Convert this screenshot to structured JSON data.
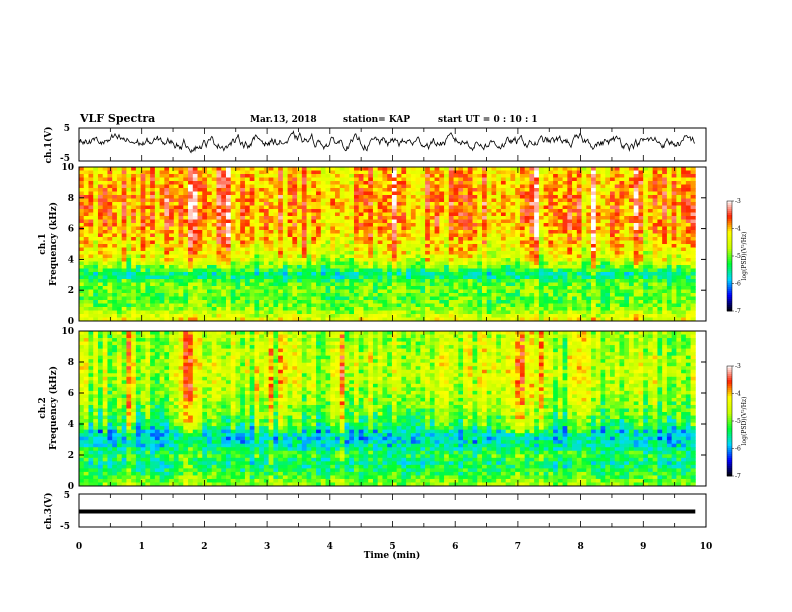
{
  "header": {
    "title": "VLF Spectra",
    "date": "Mar.13, 2018",
    "station": "station= KAP",
    "start": "start  UT =   0 : 10 : 1"
  },
  "colors": {
    "line": "#000000",
    "colormap": [
      "#000000",
      "#0000ff",
      "#00d8ff",
      "#00ff33",
      "#c8ff00",
      "#ffff00",
      "#ff2200",
      "#ffffff"
    ]
  },
  "chart_data": [
    {
      "id": "ch1-waveform",
      "type": "line",
      "ylabel": "ch.1(V)",
      "yticks": [
        "5",
        "-5"
      ],
      "ylim": [
        -5,
        5
      ],
      "xlim": [
        0,
        10
      ],
      "data_extent_min": 9.83,
      "description_values": {
        "mean": 0.5,
        "amplitude": 2.5
      },
      "sample_envelope": {
        "x": [
          0,
          1,
          2,
          3,
          4,
          5,
          6,
          7,
          8,
          9,
          9.83
        ],
        "y": [
          0.8,
          0.6,
          0.4,
          1.2,
          0.7,
          0.5,
          0.9,
          0.4,
          0.8,
          0.6,
          0.5
        ]
      }
    },
    {
      "id": "ch1-spectrogram",
      "type": "heatmap",
      "ylabel": "ch.1",
      "ylabel2": "Frequency  (kHz)",
      "yticks": [
        "0",
        "2",
        "4",
        "6",
        "8",
        "10"
      ],
      "ylim": [
        0,
        10
      ],
      "xlim": [
        0,
        10
      ],
      "data_extent_min": 9.83,
      "colorbar": {
        "label": "log(PSD)(V²/Hz)",
        "ticks": [
          "-3",
          "-4",
          "-5",
          "-6",
          "-7"
        ],
        "range": [
          -7,
          -3
        ]
      },
      "profile": {
        "freq_khz": [
          0,
          0.5,
          1.0,
          1.5,
          2.0,
          2.5,
          3.0,
          3.5,
          4.0,
          5.0,
          6.0,
          7.0,
          8.0,
          9.0,
          10.0
        ],
        "log_psd": [
          -4.3,
          -4.7,
          -5.0,
          -5.1,
          -5.0,
          -5.1,
          -5.6,
          -5.0,
          -4.5,
          -4.2,
          -4.0,
          -3.9,
          -3.9,
          -4.0,
          -4.1
        ]
      }
    },
    {
      "id": "ch2-spectrogram",
      "type": "heatmap",
      "ylabel": "ch.2",
      "ylabel2": "Frequency  (kHz)",
      "yticks": [
        "0",
        "2",
        "4",
        "6",
        "8",
        "10"
      ],
      "ylim": [
        0,
        10
      ],
      "xlim": [
        0,
        10
      ],
      "data_extent_min": 9.83,
      "colorbar": {
        "label": "log(PSD)(V²/Hz)",
        "ticks": [
          "-3",
          "-4",
          "-5",
          "-6",
          "-7"
        ],
        "range": [
          -7,
          -3
        ]
      },
      "profile": {
        "freq_khz": [
          0,
          0.5,
          1.0,
          1.5,
          2.0,
          2.5,
          3.0,
          3.5,
          4.0,
          5.0,
          6.0,
          7.0,
          8.0,
          9.0,
          10.0
        ],
        "log_psd": [
          -4.8,
          -5.1,
          -5.3,
          -5.5,
          -5.2,
          -5.6,
          -5.8,
          -5.6,
          -5.2,
          -4.9,
          -4.7,
          -4.6,
          -4.6,
          -4.7,
          -4.7
        ]
      }
    },
    {
      "id": "ch3-waveform",
      "type": "line",
      "ylabel": "ch.3(V)",
      "yticks": [
        "5",
        "-5"
      ],
      "ylim": [
        -5,
        5
      ],
      "xlim": [
        0,
        10
      ],
      "data_extent_min": 9.83,
      "description_values": {
        "mean": 0.0,
        "amplitude": 0.3
      },
      "xlabel": "Time  (min)",
      "xticks": [
        "0",
        "1",
        "2",
        "3",
        "4",
        "5",
        "6",
        "7",
        "8",
        "9",
        "10"
      ]
    }
  ]
}
